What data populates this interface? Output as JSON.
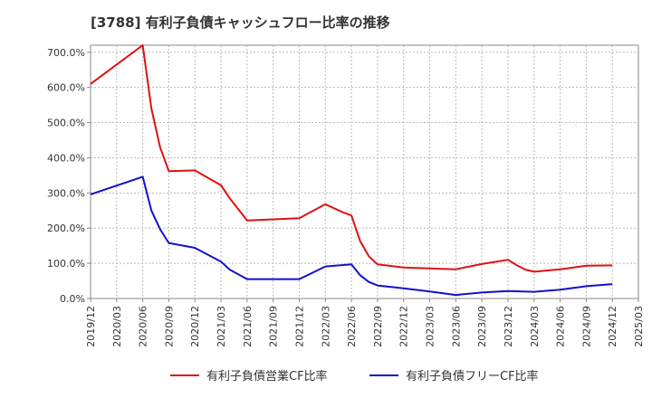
{
  "chart_data": {
    "type": "line",
    "title": "[3788]  有利子負債キャッシュフロー比率の推移",
    "xlabel": "",
    "ylabel": "",
    "ylim": [
      0,
      720
    ],
    "yticks": [
      0,
      100,
      200,
      300,
      400,
      500,
      600,
      700
    ],
    "ytick_labels": [
      "0.0%",
      "100.0%",
      "200.0%",
      "300.0%",
      "400.0%",
      "500.0%",
      "600.0%",
      "700.0%"
    ],
    "xticks": [
      "2019/12",
      "2020/03",
      "2020/06",
      "2020/09",
      "2020/12",
      "2021/03",
      "2021/06",
      "2021/09",
      "2021/12",
      "2022/03",
      "2022/06",
      "2022/09",
      "2022/12",
      "2023/03",
      "2023/06",
      "2023/09",
      "2023/12",
      "2024/03",
      "2024/06",
      "2024/09",
      "2024/12",
      "2025/03"
    ],
    "grid": true,
    "legend_position": "bottom",
    "series": [
      {
        "name": "有利子負債営業CF比率",
        "color": "#dd1111",
        "points": [
          [
            "2019/12",
            610
          ],
          [
            "2020/06",
            720
          ],
          [
            "2020/07",
            540
          ],
          [
            "2020/08",
            430
          ],
          [
            "2020/09",
            362
          ],
          [
            "2020/12",
            364
          ],
          [
            "2021/03",
            322
          ],
          [
            "2021/04",
            285
          ],
          [
            "2021/06",
            222
          ],
          [
            "2021/12",
            228
          ],
          [
            "2022/03",
            268
          ],
          [
            "2022/05",
            245
          ],
          [
            "2022/06",
            236
          ],
          [
            "2022/07",
            163
          ],
          [
            "2022/08",
            120
          ],
          [
            "2022/09",
            97
          ],
          [
            "2022/12",
            88
          ],
          [
            "2023/06",
            83
          ],
          [
            "2023/09",
            98
          ],
          [
            "2023/12",
            110
          ],
          [
            "2024/01",
            95
          ],
          [
            "2024/02",
            82
          ],
          [
            "2024/03",
            76
          ],
          [
            "2024/06",
            83
          ],
          [
            "2024/09",
            93
          ],
          [
            "2024/12",
            94
          ]
        ]
      },
      {
        "name": "有利子負債フリーCF比率",
        "color": "#1111cc",
        "points": [
          [
            "2019/12",
            296
          ],
          [
            "2020/06",
            346
          ],
          [
            "2020/07",
            250
          ],
          [
            "2020/08",
            197
          ],
          [
            "2020/09",
            158
          ],
          [
            "2020/12",
            144
          ],
          [
            "2021/03",
            105
          ],
          [
            "2021/04",
            82
          ],
          [
            "2021/06",
            55
          ],
          [
            "2021/12",
            55
          ],
          [
            "2022/03",
            91
          ],
          [
            "2022/06",
            97
          ],
          [
            "2022/07",
            66
          ],
          [
            "2022/08",
            47
          ],
          [
            "2022/09",
            37
          ],
          [
            "2022/12",
            29
          ],
          [
            "2023/03",
            20
          ],
          [
            "2023/06",
            10
          ],
          [
            "2023/09",
            17
          ],
          [
            "2023/12",
            21
          ],
          [
            "2024/03",
            19
          ],
          [
            "2024/06",
            25
          ],
          [
            "2024/09",
            35
          ],
          [
            "2024/12",
            41
          ]
        ]
      }
    ]
  }
}
